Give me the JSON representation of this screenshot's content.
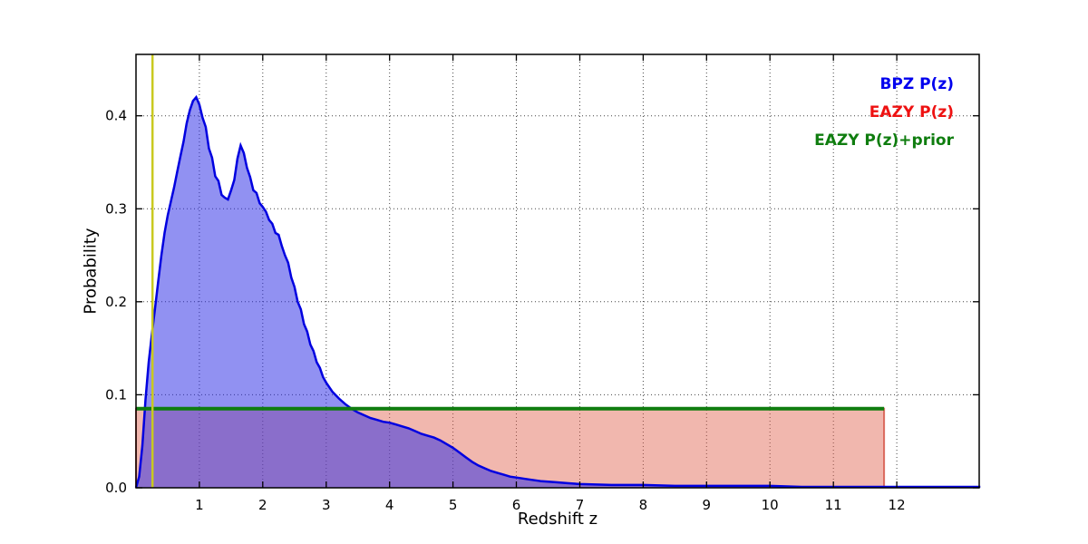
{
  "chart_data": {
    "type": "area",
    "title": "",
    "xlabel": "Redshift z",
    "ylabel": "Probability",
    "xlim": [
      0,
      13.3
    ],
    "ylim": [
      0,
      0.466
    ],
    "xticks": [
      1,
      2,
      3,
      4,
      5,
      6,
      7,
      8,
      9,
      10,
      11,
      12
    ],
    "yticks": [
      0.0,
      0.1,
      0.2,
      0.3,
      0.4
    ],
    "grid": "dotted",
    "legend_position": "upper right",
    "legend": [
      {
        "label": "BPZ P(z)",
        "color": "#0000ee"
      },
      {
        "label": "EAZY P(z)",
        "color": "#ee1111"
      },
      {
        "label": "EAZY P(z)+prior",
        "color": "#0f7d0f"
      }
    ],
    "series": [
      {
        "name": "EAZY P(z)",
        "color": "rgba(210,70,55,0.75)",
        "fill": "rgba(225,95,75,0.45)",
        "line_width": 2,
        "x": [
          0,
          11.8
        ],
        "y": [
          0.085,
          0.085
        ]
      },
      {
        "name": "BPZ P(z)",
        "color": "#0000e0",
        "fill": "rgba(45,45,230,0.52)",
        "line_width": 2.5,
        "x": [
          0.0,
          0.05,
          0.1,
          0.15,
          0.2,
          0.25,
          0.3,
          0.35,
          0.4,
          0.45,
          0.5,
          0.55,
          0.6,
          0.65,
          0.7,
          0.75,
          0.8,
          0.85,
          0.9,
          0.95,
          1.0,
          1.05,
          1.1,
          1.15,
          1.2,
          1.25,
          1.3,
          1.35,
          1.4,
          1.45,
          1.5,
          1.55,
          1.6,
          1.65,
          1.7,
          1.75,
          1.8,
          1.85,
          1.9,
          1.95,
          2.0,
          2.05,
          2.1,
          2.15,
          2.2,
          2.25,
          2.3,
          2.35,
          2.4,
          2.45,
          2.5,
          2.55,
          2.6,
          2.65,
          2.7,
          2.75,
          2.8,
          2.85,
          2.9,
          2.95,
          3.0,
          3.1,
          3.2,
          3.3,
          3.4,
          3.5,
          3.6,
          3.7,
          3.8,
          3.9,
          4.0,
          4.1,
          4.2,
          4.3,
          4.4,
          4.5,
          4.6,
          4.7,
          4.8,
          4.9,
          5.0,
          5.1,
          5.2,
          5.3,
          5.4,
          5.5,
          5.6,
          5.7,
          5.8,
          5.9,
          6.0,
          6.2,
          6.4,
          6.6,
          6.8,
          7.0,
          7.5,
          8.0,
          8.5,
          9.0,
          9.5,
          10.0,
          10.5,
          11.0,
          11.5,
          12.0,
          12.5,
          13.0,
          13.3
        ],
        "y": [
          0.0,
          0.012,
          0.045,
          0.095,
          0.135,
          0.165,
          0.193,
          0.222,
          0.25,
          0.274,
          0.293,
          0.308,
          0.323,
          0.34,
          0.356,
          0.372,
          0.392,
          0.406,
          0.416,
          0.42,
          0.412,
          0.398,
          0.388,
          0.365,
          0.355,
          0.335,
          0.33,
          0.315,
          0.312,
          0.31,
          0.32,
          0.331,
          0.354,
          0.368,
          0.36,
          0.344,
          0.334,
          0.32,
          0.317,
          0.306,
          0.302,
          0.297,
          0.288,
          0.284,
          0.274,
          0.272,
          0.26,
          0.25,
          0.242,
          0.226,
          0.216,
          0.2,
          0.192,
          0.176,
          0.168,
          0.154,
          0.147,
          0.135,
          0.129,
          0.119,
          0.113,
          0.103,
          0.096,
          0.09,
          0.085,
          0.081,
          0.078,
          0.075,
          0.073,
          0.071,
          0.07,
          0.068,
          0.066,
          0.064,
          0.061,
          0.058,
          0.056,
          0.054,
          0.051,
          0.047,
          0.043,
          0.038,
          0.033,
          0.028,
          0.024,
          0.021,
          0.018,
          0.016,
          0.014,
          0.012,
          0.011,
          0.009,
          0.007,
          0.006,
          0.005,
          0.004,
          0.003,
          0.003,
          0.002,
          0.002,
          0.002,
          0.002,
          0.001,
          0.001,
          0.001,
          0.001,
          0.001,
          0.001,
          0.001
        ]
      },
      {
        "name": "EAZY P(z)+prior",
        "color": "#0f7d0f",
        "fill": null,
        "line_width": 4,
        "x": [
          0,
          11.8
        ],
        "y": [
          0.085,
          0.085
        ]
      }
    ],
    "vline": {
      "x": 0.26,
      "color": "#c9c920",
      "line_width": 2.5,
      "name": "redshift-marker"
    }
  }
}
